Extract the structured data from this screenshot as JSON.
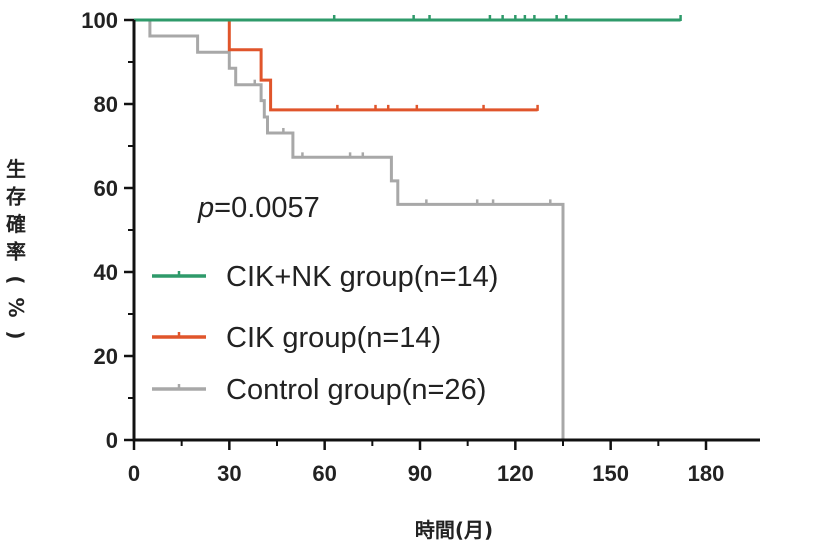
{
  "chart_data": {
    "type": "line",
    "subtype": "kaplan-meier",
    "xlabel": "時間(月)",
    "ylabel": "生存確率(%)",
    "xlim": [
      0,
      200
    ],
    "ylim": [
      0,
      100
    ],
    "x_ticks": [
      "0",
      "30",
      "60",
      "90",
      "120",
      "150",
      "180"
    ],
    "y_ticks": [
      "0",
      "20",
      "40",
      "60",
      "80",
      "100"
    ],
    "annotation": {
      "p_letter": "p",
      "p_value": "=0.0057"
    },
    "legend_position": "lower-left",
    "grid": false,
    "series": [
      {
        "name": "CIK+NK group(n=14)",
        "color": "#2e9a6a",
        "steps": [
          [
            0,
            100
          ],
          [
            172,
            100
          ]
        ],
        "censored": [
          63,
          88,
          93,
          112,
          116,
          120,
          123,
          126,
          133,
          136,
          172
        ]
      },
      {
        "name": "CIK group(n=14)",
        "color": "#e0552b",
        "steps": [
          [
            0,
            100
          ],
          [
            30,
            100
          ],
          [
            30,
            92.9
          ],
          [
            40,
            92.9
          ],
          [
            40,
            85.7
          ],
          [
            43,
            85.7
          ],
          [
            43,
            78.6
          ],
          [
            127,
            78.6
          ]
        ],
        "censored": [
          64,
          76,
          80,
          89,
          110,
          127
        ]
      },
      {
        "name": "Control group(n=26)",
        "color": "#a8a8a8",
        "steps": [
          [
            0,
            100
          ],
          [
            5,
            100
          ],
          [
            5,
            96.2
          ],
          [
            20,
            96.2
          ],
          [
            20,
            92.3
          ],
          [
            30,
            92.3
          ],
          [
            30,
            88.5
          ],
          [
            32,
            88.5
          ],
          [
            32,
            84.6
          ],
          [
            40,
            84.6
          ],
          [
            40,
            80.8
          ],
          [
            41,
            80.8
          ],
          [
            41,
            76.9
          ],
          [
            42,
            76.9
          ],
          [
            42,
            73.1
          ],
          [
            50,
            73.1
          ],
          [
            50,
            67.3
          ],
          [
            81,
            67.3
          ],
          [
            81,
            61.7
          ],
          [
            83,
            61.7
          ],
          [
            83,
            56.1
          ],
          [
            135,
            56.1
          ],
          [
            135,
            0
          ]
        ],
        "censored": [
          38,
          47,
          53,
          68,
          72,
          92,
          108,
          113,
          131
        ]
      }
    ]
  }
}
